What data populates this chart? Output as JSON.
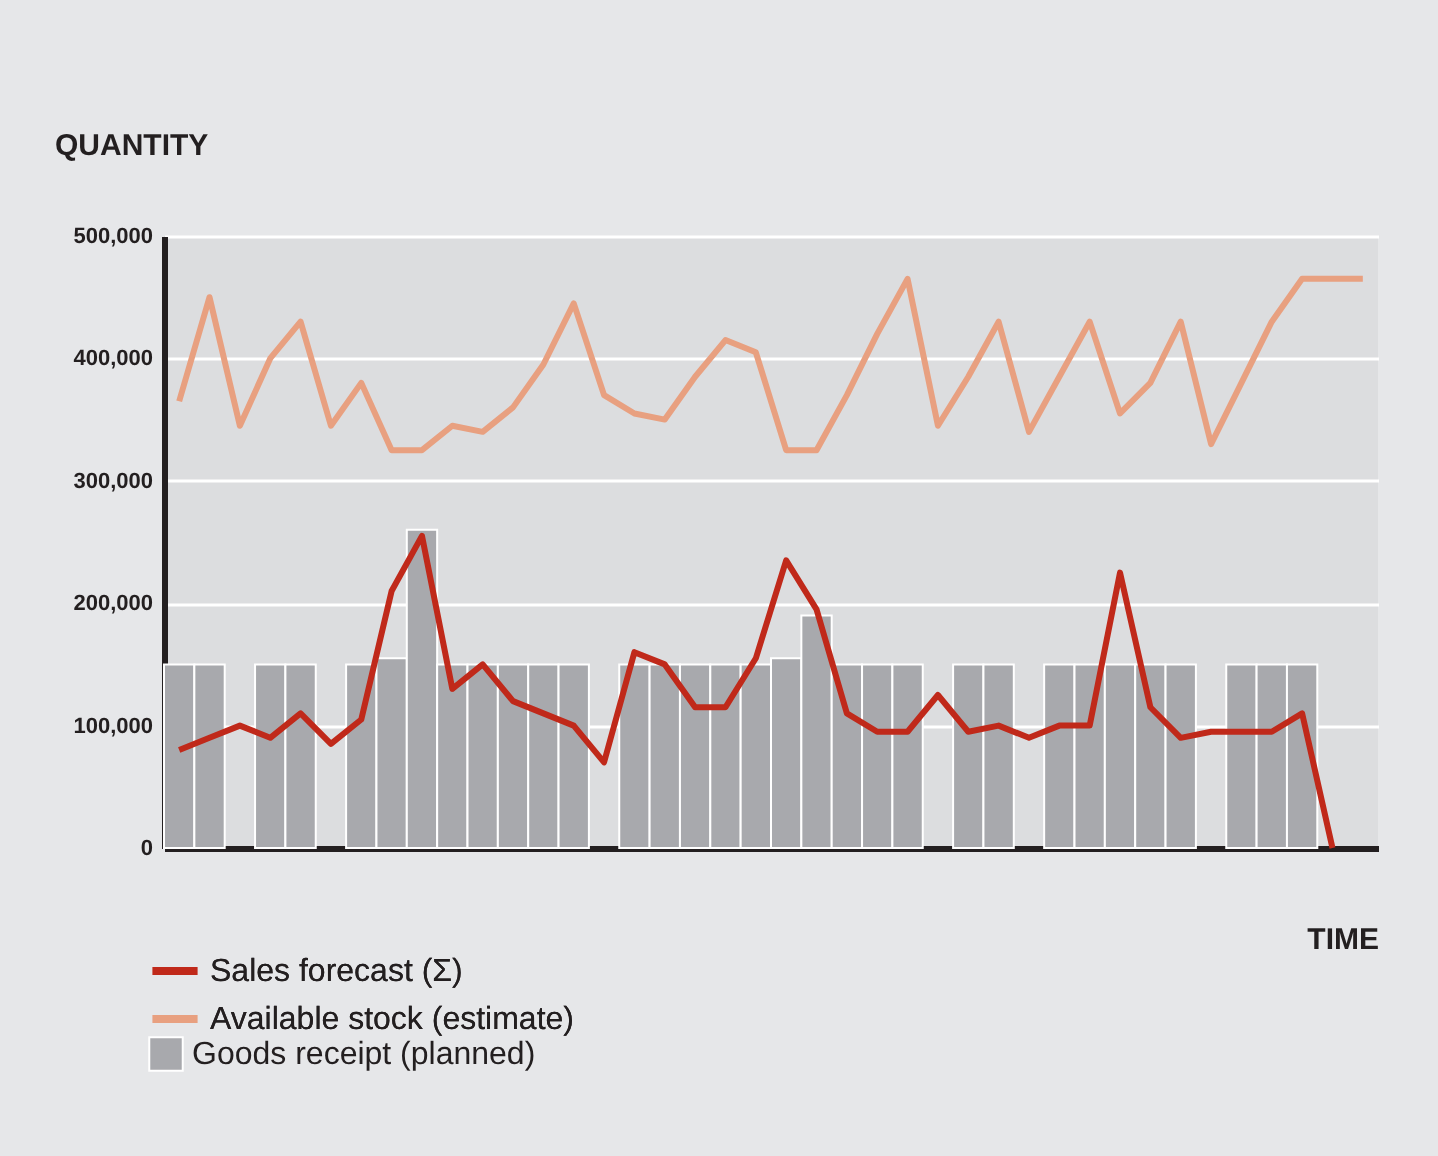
{
  "chart_data": {
    "type": "bar",
    "xlabel": "TIME",
    "ylabel": "QUANTITY",
    "categories": [
      null,
      null,
      null,
      null,
      null,
      null,
      null,
      null,
      null,
      null,
      null,
      null,
      null,
      null,
      null,
      null,
      null,
      null,
      null,
      null,
      null,
      null,
      null,
      null,
      null,
      null,
      null,
      null,
      null,
      null,
      null,
      null,
      null,
      null,
      null,
      null,
      null,
      null,
      null,
      null
    ],
    "ylim": [
      0,
      500000
    ],
    "yticks": [
      0,
      {
        "value": 100000,
        "label": "100,000"
      },
      {
        "value": 200000,
        "label": "200,000"
      },
      {
        "value": 300000,
        "label": "300,000"
      },
      {
        "value": 400000,
        "label": "400,000"
      },
      {
        "value": 500000,
        "label": "500,000"
      }
    ],
    "grid": "y",
    "legend": "bottom left",
    "tick_labels": "y",
    "series": [
      {
        "name": "Sales forecast (Σ)",
        "type": "line",
        "color": "#c0291a",
        "values": [
          80000,
          90000,
          100000,
          90000,
          110000,
          85000,
          105000,
          210000,
          255000,
          130000,
          150000,
          120000,
          110000,
          100000,
          70000,
          160000,
          150000,
          115000,
          115000,
          155000,
          235000,
          195000,
          110000,
          95000,
          95000,
          125000,
          95000,
          100000,
          90000,
          100000,
          100000,
          225000,
          115000,
          90000,
          95000,
          95000,
          95000,
          110000,
          0,
          null
        ]
      },
      {
        "name": "Available stock (estimate)",
        "type": "line",
        "color": "#e8a080",
        "values": [
          365000,
          450000,
          345000,
          400000,
          430000,
          345000,
          380000,
          325000,
          325000,
          345000,
          340000,
          360000,
          395000,
          445000,
          370000,
          355000,
          350000,
          385000,
          415000,
          405000,
          325000,
          325000,
          370000,
          420000,
          465000,
          345000,
          385000,
          430000,
          340000,
          385000,
          430000,
          355000,
          380000,
          430000,
          330000,
          380000,
          430000,
          465000,
          465000,
          465000
        ]
      },
      {
        "name": "Goods receipt (planned)",
        "color": "#a8a9ad",
        "values": [
          150000,
          150000,
          null,
          150000,
          150000,
          null,
          150000,
          155000,
          260000,
          150000,
          150000,
          150000,
          150000,
          150000,
          null,
          150000,
          150000,
          150000,
          150000,
          150000,
          155000,
          190000,
          150000,
          150000,
          150000,
          null,
          150000,
          150000,
          null,
          150000,
          150000,
          150000,
          150000,
          150000,
          null,
          150000,
          150000,
          150000,
          null,
          null
        ]
      }
    ]
  }
}
